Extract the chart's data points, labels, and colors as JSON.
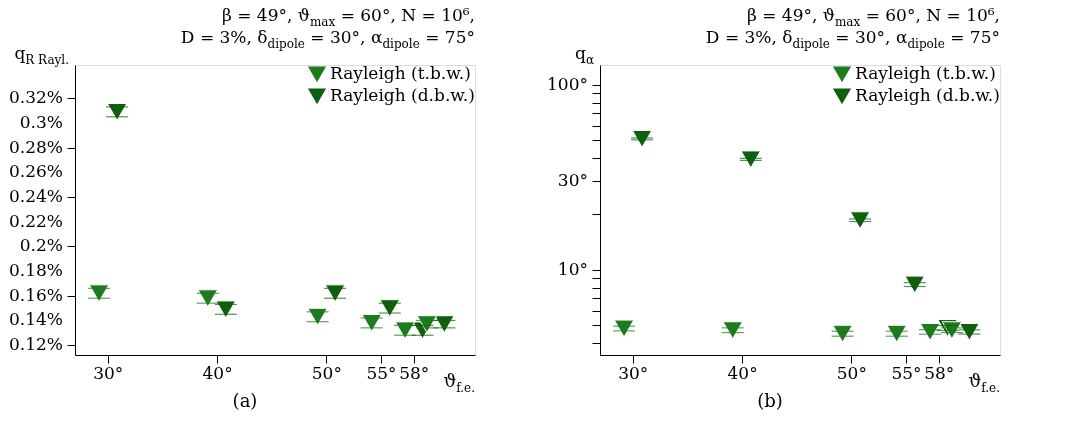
{
  "chart_data": [
    {
      "type": "scatter",
      "xlabel": "ϑ$_{f.e.}$",
      "ylabel": "q$_{R Rayl.}$",
      "marker": "triangle",
      "legend": "top right",
      "grid": false,
      "annotations": [
        "β = 49°, ϑ$_{max}$ = 60°, N = 10⁶,",
        "D = 3%, δ$_{dipole}$ = 30°, α$_{dipole}$ = 75°",
        "(a)"
      ],
      "xlim": [
        27,
        63.6
      ],
      "xticks": [
        {
          "value": 30,
          "label": "30°"
        },
        {
          "value": 40,
          "label": "40°"
        },
        {
          "value": 50,
          "label": "50°"
        },
        {
          "value": 55,
          "label": "55°"
        },
        {
          "value": 58,
          "label": "58°"
        }
      ],
      "ylim": [
        0.112,
        0.347
      ],
      "yticks": [
        {
          "value": 0.12,
          "label": "0.12%"
        },
        {
          "value": 0.14,
          "label": "0.14%"
        },
        {
          "value": 0.16,
          "label": "0.16%"
        },
        {
          "value": 0.18,
          "label": "0.18%"
        },
        {
          "value": 0.2,
          "label": "0.2%"
        },
        {
          "value": 0.22,
          "label": "0.22%"
        },
        {
          "value": 0.24,
          "label": "0.24%"
        },
        {
          "value": 0.26,
          "label": "0.26%"
        },
        {
          "value": 0.28,
          "label": "0.28%"
        },
        {
          "value": 0.3,
          "label": "0.3%"
        },
        {
          "value": 0.32,
          "label": "0.32%"
        }
      ],
      "series": [
        {
          "name": "Rayleigh (t.b.w.)",
          "color": "#1e7b1e",
          "x": [
            29.2,
            39.15,
            49.2,
            54.15,
            57.2,
            59.2
          ],
          "values": [
            0.162,
            0.158,
            0.143,
            0.138,
            0.132,
            0.137
          ],
          "errors": [
            0.004,
            0.004,
            0.004,
            0.004,
            0.004,
            0.003
          ]
        },
        {
          "name": "Rayleigh (d.b.w.)",
          "color": "#0f5f0f",
          "x": [
            30.85,
            40.8,
            50.8,
            55.8,
            58.8,
            60.8
          ],
          "values": [
            0.309,
            0.149,
            0.162,
            0.15,
            0.132,
            0.137
          ],
          "errors": [
            0.004,
            0.004,
            0.004,
            0.004,
            0.004,
            0.003
          ]
        }
      ]
    },
    {
      "type": "scatter",
      "xlabel": "ϑ$_{f.e.}$",
      "ylabel": "q$_{α}$",
      "marker": "triangle",
      "legend": "top right",
      "grid": false,
      "log": true,
      "annotations": [
        "β = 49°, ϑ$_{max}$ = 60°, N = 10⁶,",
        "D = 3%, δ$_{dipole}$ = 30°, α$_{dipole}$ = 75°",
        "(b)"
      ],
      "xlim": [
        27,
        63.6
      ],
      "xticks": [
        {
          "value": 30,
          "label": "30°"
        },
        {
          "value": 40,
          "label": "40°"
        },
        {
          "value": 50,
          "label": "50°"
        },
        {
          "value": 55,
          "label": "55°"
        },
        {
          "value": 58,
          "label": "58°"
        }
      ],
      "ylim": [
        3.45,
        128
      ],
      "yticks": [
        {
          "value": 4,
          "label": null
        },
        {
          "value": 5,
          "label": null
        },
        {
          "value": 6,
          "label": null
        },
        {
          "value": 7,
          "label": null
        },
        {
          "value": 8,
          "label": null
        },
        {
          "value": 9,
          "label": null
        },
        {
          "value": 10,
          "label": "10°"
        },
        {
          "value": 20,
          "label": null
        },
        {
          "value": 30,
          "label": "30°"
        },
        {
          "value": 40,
          "label": null
        },
        {
          "value": 50,
          "label": null
        },
        {
          "value": 60,
          "label": null
        },
        {
          "value": 70,
          "label": null
        },
        {
          "value": 80,
          "label": null
        },
        {
          "value": 90,
          "label": null
        },
        {
          "value": 100,
          "label": "100°"
        }
      ],
      "series": [
        {
          "name": "Rayleigh (t.b.w.)",
          "color": "#1e7b1e",
          "x": [
            29.2,
            39.15,
            49.2,
            54.15,
            57.2,
            59.2
          ],
          "values": [
            4.8,
            4.7,
            4.5,
            4.5,
            4.6,
            4.7
          ],
          "errors": [
            0.14,
            0.14,
            0.14,
            0.14,
            0.13,
            0.14
          ]
        },
        {
          "name": "Rayleigh (d.b.w.)",
          "color": "#0f5f0f",
          "x": [
            30.85,
            40.8,
            50.8,
            55.8,
            58.8,
            60.8
          ],
          "values": [
            51,
            39.5,
            18.5,
            8.3,
            4.83,
            4.6
          ],
          "errors": [
            0.6,
            0.5,
            0.3,
            0.2,
            0.15,
            0.12
          ]
        }
      ]
    }
  ]
}
